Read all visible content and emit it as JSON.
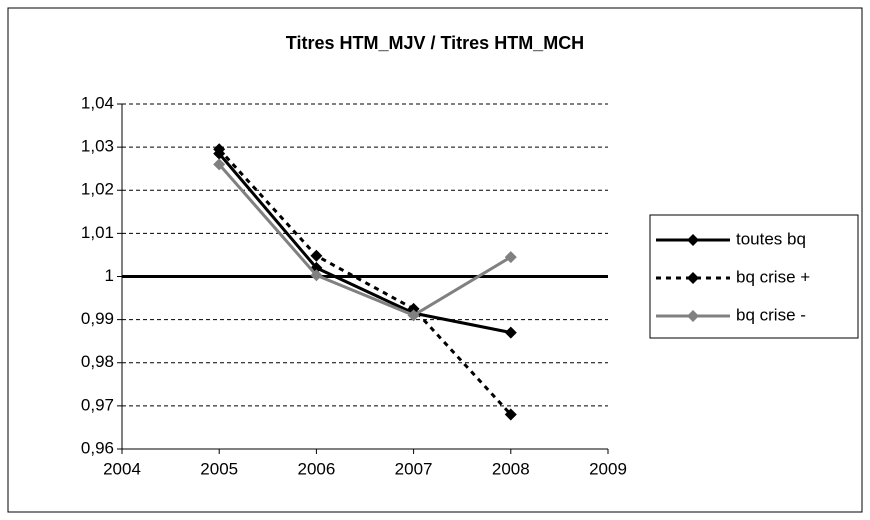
{
  "chart_data": {
    "type": "line",
    "title": "Titres HTM_MJV / Titres HTM_MCH",
    "x": [
      2005,
      2006,
      2007,
      2008
    ],
    "series": [
      {
        "name": "toutes bq",
        "color": "#000000",
        "dash": false,
        "values": [
          1.0285,
          1.002,
          0.9915,
          0.987
        ]
      },
      {
        "name": "bq crise +",
        "color": "#000000",
        "dash": true,
        "values": [
          1.0295,
          1.0048,
          0.9925,
          0.968
        ]
      },
      {
        "name": "bq crise -",
        "color": "#808080",
        "dash": false,
        "values": [
          1.026,
          1.0003,
          0.991,
          1.0045
        ]
      }
    ],
    "xlim": [
      2004,
      2009
    ],
    "xticks": [
      2004,
      2005,
      2006,
      2007,
      2008,
      2009
    ],
    "ylim": [
      0.96,
      1.04
    ],
    "yticks": [
      {
        "value": 0.96,
        "label": "0,96"
      },
      {
        "value": 0.97,
        "label": "0,97"
      },
      {
        "value": 0.98,
        "label": "0,98"
      },
      {
        "value": 0.99,
        "label": "0,99"
      },
      1,
      {
        "value": 1.01,
        "label": "1,01"
      },
      {
        "value": 1.02,
        "label": "1,02"
      },
      {
        "value": 1.03,
        "label": "1,03"
      },
      {
        "value": 1.04,
        "label": "1,04"
      }
    ],
    "hline": 1,
    "grid": true,
    "legend": "right"
  }
}
